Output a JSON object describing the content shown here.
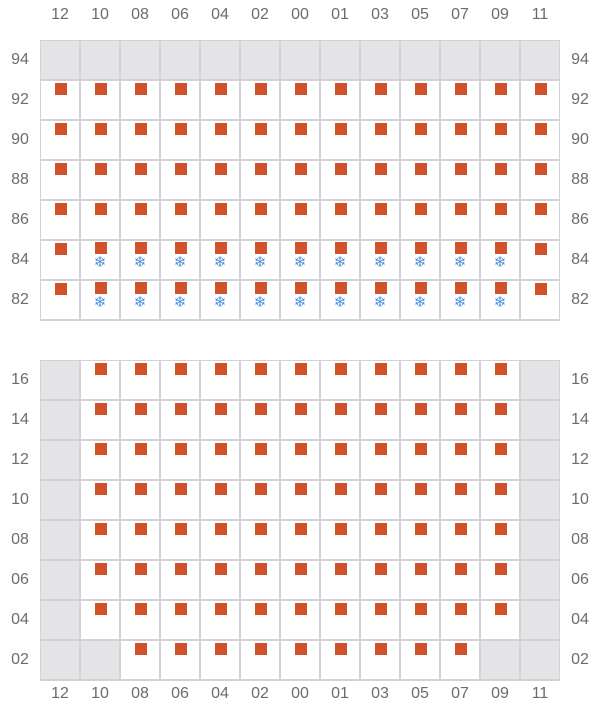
{
  "colors": {
    "marker": "#cf5229",
    "snowflake": "#4a90d9",
    "unavailable": "#e4e4e7",
    "grid": "#d2d2d6"
  },
  "legend_states": {
    "g": "unavailable",
    "s": "marker",
    "f": "marker-with-snowflake-icon",
    "e": "empty"
  },
  "columns": [
    "12",
    "10",
    "08",
    "06",
    "04",
    "02",
    "00",
    "01",
    "03",
    "05",
    "07",
    "09",
    "11"
  ],
  "top_section": {
    "rows": [
      {
        "label": "94",
        "cells": [
          "g",
          "g",
          "g",
          "g",
          "g",
          "g",
          "g",
          "g",
          "g",
          "g",
          "g",
          "g",
          "g"
        ]
      },
      {
        "label": "92",
        "cells": [
          "s",
          "s",
          "s",
          "s",
          "s",
          "s",
          "s",
          "s",
          "s",
          "s",
          "s",
          "s",
          "s"
        ]
      },
      {
        "label": "90",
        "cells": [
          "s",
          "s",
          "s",
          "s",
          "s",
          "s",
          "s",
          "s",
          "s",
          "s",
          "s",
          "s",
          "s"
        ]
      },
      {
        "label": "88",
        "cells": [
          "s",
          "s",
          "s",
          "s",
          "s",
          "s",
          "s",
          "s",
          "s",
          "s",
          "s",
          "s",
          "s"
        ]
      },
      {
        "label": "86",
        "cells": [
          "s",
          "s",
          "s",
          "s",
          "s",
          "s",
          "s",
          "s",
          "s",
          "s",
          "s",
          "s",
          "s"
        ]
      },
      {
        "label": "84",
        "cells": [
          "s",
          "f",
          "f",
          "f",
          "f",
          "f",
          "f",
          "f",
          "f",
          "f",
          "f",
          "f",
          "s"
        ]
      },
      {
        "label": "82",
        "cells": [
          "s",
          "f",
          "f",
          "f",
          "f",
          "f",
          "f",
          "f",
          "f",
          "f",
          "f",
          "f",
          "s"
        ]
      }
    ]
  },
  "bottom_section": {
    "rows": [
      {
        "label": "16",
        "cells": [
          "g",
          "s",
          "s",
          "s",
          "s",
          "s",
          "s",
          "s",
          "s",
          "s",
          "s",
          "s",
          "g"
        ]
      },
      {
        "label": "14",
        "cells": [
          "g",
          "s",
          "s",
          "s",
          "s",
          "s",
          "s",
          "s",
          "s",
          "s",
          "s",
          "s",
          "g"
        ]
      },
      {
        "label": "12",
        "cells": [
          "g",
          "s",
          "s",
          "s",
          "s",
          "s",
          "s",
          "s",
          "s",
          "s",
          "s",
          "s",
          "g"
        ]
      },
      {
        "label": "10",
        "cells": [
          "g",
          "s",
          "s",
          "s",
          "s",
          "s",
          "s",
          "s",
          "s",
          "s",
          "s",
          "s",
          "g"
        ]
      },
      {
        "label": "08",
        "cells": [
          "g",
          "s",
          "s",
          "s",
          "s",
          "s",
          "s",
          "s",
          "s",
          "s",
          "s",
          "s",
          "g"
        ]
      },
      {
        "label": "06",
        "cells": [
          "g",
          "s",
          "s",
          "s",
          "s",
          "s",
          "s",
          "s",
          "s",
          "s",
          "s",
          "s",
          "g"
        ]
      },
      {
        "label": "04",
        "cells": [
          "g",
          "s",
          "s",
          "s",
          "s",
          "s",
          "s",
          "s",
          "s",
          "s",
          "s",
          "s",
          "g"
        ]
      },
      {
        "label": "02",
        "cells": [
          "g",
          "g",
          "s",
          "s",
          "s",
          "s",
          "s",
          "s",
          "s",
          "s",
          "s",
          "g",
          "g"
        ]
      }
    ]
  }
}
